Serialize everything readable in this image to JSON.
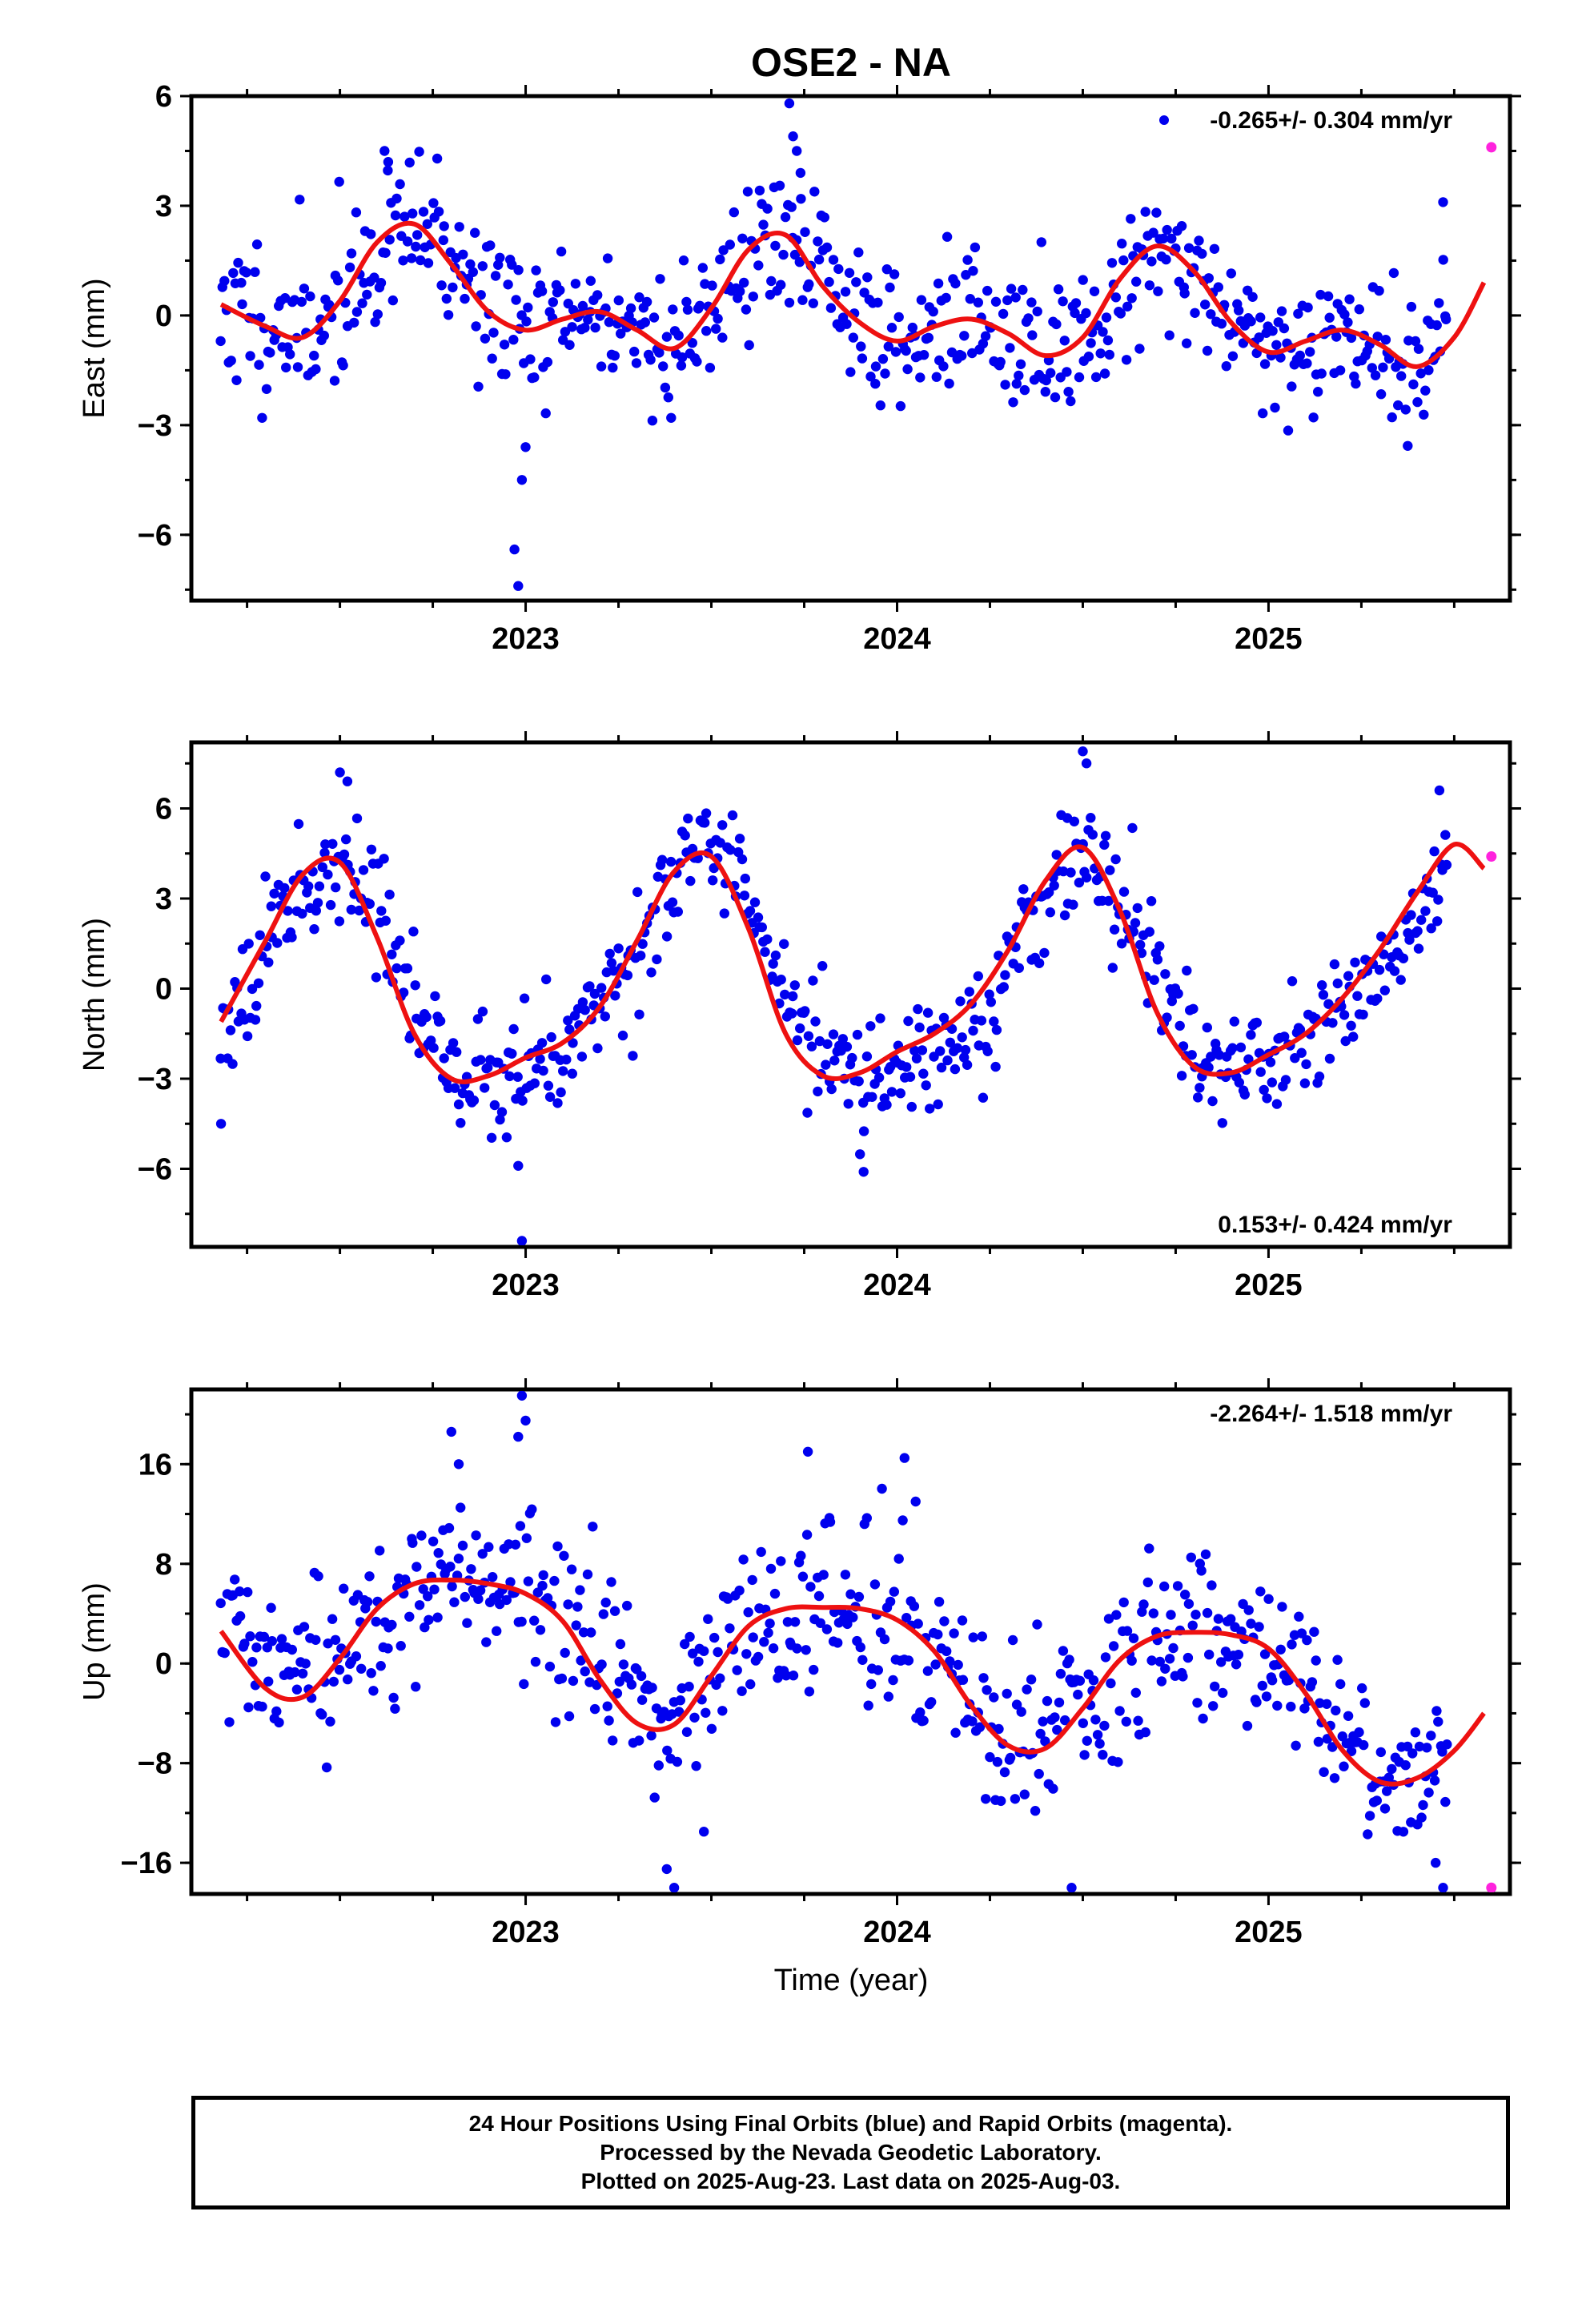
{
  "title": "OSE2 - NA",
  "xlabel": "Time (year)",
  "x_tick_labels": [
    "2023",
    "2024",
    "2025"
  ],
  "caption": [
    "24 Hour Positions Using Final Orbits (blue) and Rapid Orbits (magenta).",
    "Processed by the Nevada Geodetic Laboratory.",
    "Plotted on 2025-Aug-23. Last data on 2025-Aug-03."
  ],
  "colors": {
    "final": "#0000ee",
    "rapid": "#ff22dd",
    "fit": "#ee1111",
    "axis": "#000000"
  },
  "chart_data": [
    {
      "type": "scatter",
      "ylabel": "East (mm)",
      "rate_label": "-0.265+/- 0.304 mm/yr",
      "rate_position": "top-right",
      "xlim": [
        2022.1,
        2025.65
      ],
      "ylim": [
        -7.8,
        6.0
      ],
      "yticks": [
        6,
        3,
        0,
        -3,
        -6
      ],
      "ytick_labels": [
        "6",
        "3",
        "0",
        "−3",
        "−6"
      ],
      "fit": {
        "x": [
          2022.18,
          2022.3,
          2022.4,
          2022.5,
          2022.6,
          2022.7,
          2022.8,
          2022.9,
          2023.0,
          2023.1,
          2023.2,
          2023.3,
          2023.4,
          2023.5,
          2023.6,
          2023.7,
          2023.8,
          2023.9,
          2024.0,
          2024.1,
          2024.2,
          2024.3,
          2024.4,
          2024.5,
          2024.6,
          2024.7,
          2024.8,
          2024.9,
          2025.0,
          2025.1,
          2025.2,
          2025.3,
          2025.4,
          2025.5,
          2025.58
        ],
        "y": [
          0.3,
          -0.3,
          -0.6,
          0.4,
          2.0,
          2.5,
          1.4,
          0.1,
          -0.4,
          -0.1,
          0.1,
          -0.4,
          -0.9,
          0.2,
          1.8,
          2.2,
          0.8,
          -0.2,
          -0.7,
          -0.3,
          -0.1,
          -0.5,
          -1.1,
          -0.6,
          1.0,
          1.9,
          1.2,
          -0.2,
          -1.0,
          -0.7,
          -0.4,
          -0.8,
          -1.4,
          -0.6,
          0.9
        ]
      },
      "rapid": {
        "x": [
          2025.6
        ],
        "y": [
          4.6
        ]
      },
      "anchors": {
        "x": [
          2022.18,
          2022.4,
          2022.55,
          2022.72,
          2022.9,
          2023.0,
          2023.2,
          2023.4,
          2023.6,
          2023.72,
          2023.85,
          2024.0,
          2024.15,
          2024.35,
          2024.5,
          2024.62,
          2024.7,
          2024.85,
          2025.0,
          2025.15,
          2025.3,
          2025.4,
          2025.48
        ],
        "y": [
          0.3,
          -0.6,
          1.0,
          2.5,
          0.4,
          -0.4,
          0.1,
          -0.9,
          1.6,
          2.2,
          0.4,
          -0.7,
          -0.1,
          -1.0,
          -0.8,
          1.2,
          1.9,
          0.6,
          -1.0,
          -0.5,
          -0.9,
          -1.4,
          -0.8
        ]
      },
      "noise": 1.05,
      "seed": 11,
      "n": 620,
      "outliers": {
        "x": [
          2022.97,
          2022.98,
          2022.99,
          2023.0,
          2023.71,
          2023.72,
          2023.73,
          2023.74,
          2022.62,
          2022.63,
          2025.47
        ],
        "y": [
          -6.4,
          -7.4,
          -4.5,
          -3.6,
          5.8,
          4.9,
          4.5,
          3.9,
          4.5,
          4.2,
          3.1
        ]
      }
    },
    {
      "type": "scatter",
      "ylabel": "North (mm)",
      "rate_label": "0.153+/- 0.424 mm/yr",
      "rate_position": "bottom-right",
      "xlim": [
        2022.1,
        2025.65
      ],
      "ylim": [
        -8.6,
        8.2
      ],
      "yticks": [
        6,
        3,
        0,
        -3,
        -6
      ],
      "ytick_labels": [
        "6",
        "3",
        "0",
        "−3",
        "−6"
      ],
      "fit": {
        "x": [
          2022.18,
          2022.3,
          2022.4,
          2022.5,
          2022.6,
          2022.7,
          2022.8,
          2022.9,
          2023.0,
          2023.1,
          2023.2,
          2023.3,
          2023.4,
          2023.5,
          2023.6,
          2023.7,
          2023.8,
          2023.9,
          2024.0,
          2024.1,
          2024.2,
          2024.3,
          2024.4,
          2024.5,
          2024.6,
          2024.7,
          2024.8,
          2024.9,
          2025.0,
          2025.1,
          2025.2,
          2025.3,
          2025.4,
          2025.5,
          2025.58
        ],
        "y": [
          -1.1,
          1.6,
          3.8,
          4.2,
          1.7,
          -1.5,
          -3.0,
          -2.9,
          -2.3,
          -1.8,
          -0.6,
          1.6,
          3.9,
          4.4,
          2.0,
          -1.5,
          -2.9,
          -2.8,
          -2.1,
          -1.5,
          -0.5,
          1.3,
          3.6,
          4.7,
          2.6,
          -0.8,
          -2.6,
          -2.8,
          -2.2,
          -1.5,
          -0.3,
          1.3,
          3.2,
          4.8,
          4.0
        ]
      },
      "rapid": {
        "x": [
          2025.6
        ],
        "y": [
          4.4
        ]
      },
      "anchors": {
        "x": [
          2022.18,
          2022.3,
          2022.42,
          2022.52,
          2022.62,
          2022.72,
          2022.82,
          2022.95,
          2023.1,
          2023.3,
          2023.42,
          2023.52,
          2023.62,
          2023.75,
          2023.9,
          2024.05,
          2024.25,
          2024.4,
          2024.5,
          2024.6,
          2024.72,
          2024.85,
          2025.0,
          2025.2,
          2025.35,
          2025.48
        ],
        "y": [
          -1.1,
          1.6,
          3.9,
          4.3,
          2.0,
          -1.2,
          -2.9,
          -3.0,
          -1.8,
          1.4,
          4.0,
          4.4,
          2.0,
          -1.5,
          -2.9,
          -2.2,
          -0.7,
          3.0,
          4.7,
          3.0,
          -0.2,
          -2.5,
          -2.4,
          -1.0,
          1.0,
          4.6
        ]
      },
      "noise": 0.95,
      "seed": 23,
      "n": 620,
      "outliers": {
        "x": [
          2022.99,
          2022.98,
          2022.5,
          2022.52,
          2024.5,
          2024.51,
          2023.91,
          2022.18,
          2025.46
        ],
        "y": [
          -8.4,
          -5.9,
          7.2,
          6.9,
          7.9,
          7.5,
          -6.1,
          -4.5,
          6.6
        ]
      }
    },
    {
      "type": "scatter",
      "ylabel": "Up (mm)",
      "xlabel": "Time (year)",
      "rate_label": "-2.264+/- 1.518 mm/yr",
      "rate_position": "top-right",
      "xlim": [
        2022.1,
        2025.65
      ],
      "ylim": [
        -18.5,
        22.0
      ],
      "yticks": [
        16,
        8,
        0,
        -8,
        -16
      ],
      "ytick_labels": [
        "16",
        "8",
        "0",
        "−8",
        "−16"
      ],
      "fit": {
        "x": [
          2022.18,
          2022.3,
          2022.4,
          2022.5,
          2022.6,
          2022.7,
          2022.8,
          2022.9,
          2023.0,
          2023.1,
          2023.2,
          2023.3,
          2023.4,
          2023.5,
          2023.6,
          2023.7,
          2023.8,
          2023.9,
          2024.0,
          2024.1,
          2024.2,
          2024.3,
          2024.4,
          2024.5,
          2024.6,
          2024.7,
          2024.8,
          2024.9,
          2025.0,
          2025.1,
          2025.2,
          2025.3,
          2025.4,
          2025.5,
          2025.58
        ],
        "y": [
          2.6,
          -2.0,
          -2.7,
          0.4,
          4.4,
          6.4,
          6.7,
          6.4,
          5.6,
          3.4,
          -1.3,
          -4.8,
          -4.9,
          -1.0,
          3.0,
          4.4,
          4.5,
          4.4,
          3.5,
          1.0,
          -3.4,
          -6.6,
          -6.8,
          -3.6,
          0.3,
          2.2,
          2.5,
          2.3,
          1.2,
          -2.4,
          -7.0,
          -9.5,
          -9.2,
          -7.0,
          -4.0
        ]
      },
      "rapid": {
        "x": [
          2025.6
        ],
        "y": [
          -18.0
        ]
      },
      "anchors": {
        "x": [
          2022.18,
          2022.35,
          2022.5,
          2022.7,
          2022.85,
          2023.0,
          2023.15,
          2023.4,
          2023.6,
          2023.8,
          2024.0,
          2024.15,
          2024.35,
          2024.45,
          2024.65,
          2024.85,
          2025.0,
          2025.15,
          2025.35,
          2025.48
        ],
        "y": [
          3.0,
          -2.6,
          0.4,
          6.4,
          6.6,
          5.6,
          1.5,
          -5.0,
          3.0,
          4.5,
          3.5,
          -1.5,
          -6.8,
          -5.0,
          1.2,
          2.5,
          1.2,
          -4.0,
          -9.5,
          -7.5
        ]
      },
      "noise": 3.4,
      "seed": 37,
      "n": 620,
      "outliers": {
        "x": [
          2022.99,
          2023.0,
          2022.98,
          2022.8,
          2022.82,
          2023.4,
          2023.38,
          2023.48,
          2023.76,
          2024.02,
          2024.05,
          2024.47,
          2025.47,
          2025.45
        ],
        "y": [
          21.5,
          19.5,
          18.2,
          18.6,
          16.0,
          -18.0,
          -16.5,
          -13.5,
          17.0,
          16.5,
          13.0,
          -18.0,
          -18.0,
          -16.0
        ]
      }
    }
  ]
}
